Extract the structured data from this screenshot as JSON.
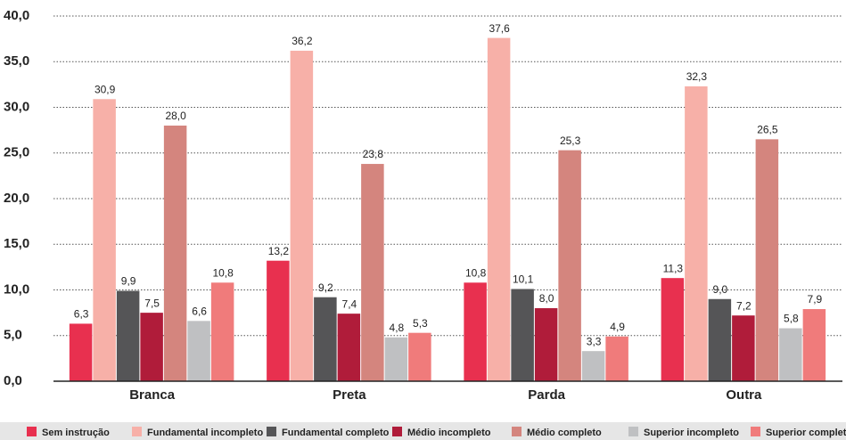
{
  "chart_data": {
    "type": "bar",
    "categories": [
      "Branca",
      "Preta",
      "Parda",
      "Outra"
    ],
    "series": [
      {
        "name": "Sem instrução",
        "color": "#e8304f",
        "values": [
          6.3,
          13.2,
          10.8,
          11.3
        ],
        "value_labels": [
          "6,3",
          "13,2",
          "10,8",
          "11,3"
        ]
      },
      {
        "name": "Fundamental incompleto",
        "color": "#f7b0a8",
        "values": [
          30.9,
          36.2,
          37.6,
          32.3
        ],
        "value_labels": [
          "30,9",
          "36,2",
          "37,6",
          "32,3"
        ]
      },
      {
        "name": "Fundamental completo",
        "color": "#555557",
        "values": [
          9.9,
          9.2,
          10.1,
          9.0
        ],
        "value_labels": [
          "9,9",
          "9,2",
          "10,1",
          "9,0"
        ]
      },
      {
        "name": "Médio incompleto",
        "color": "#b01c3a",
        "values": [
          7.5,
          7.4,
          8.0,
          7.2
        ],
        "value_labels": [
          "7,5",
          "7,4",
          "8,0",
          "7,2"
        ]
      },
      {
        "name": "Médio completo",
        "color": "#d4857e",
        "values": [
          28.0,
          23.8,
          25.3,
          26.5
        ],
        "value_labels": [
          "28,0",
          "23,8",
          "25,3",
          "26,5"
        ]
      },
      {
        "name": "Superior incompleto",
        "color": "#bfc0c2",
        "values": [
          6.6,
          4.8,
          3.3,
          5.8
        ],
        "value_labels": [
          "6,6",
          "4,8",
          "3,3",
          "5,8"
        ]
      },
      {
        "name": "Superior completo",
        "color": "#f07b7b",
        "values": [
          10.8,
          5.3,
          4.9,
          7.9
        ],
        "value_labels": [
          "10,8",
          "5,3",
          "4,9",
          "7,9"
        ]
      }
    ],
    "ylim": [
      0,
      40
    ],
    "yticks": [
      {
        "value": 0,
        "label": "0,0"
      },
      {
        "value": 5,
        "label": "5,0"
      },
      {
        "value": 10,
        "label": "10,0"
      },
      {
        "value": 15,
        "label": "15,0"
      },
      {
        "value": 20,
        "label": "20,0"
      },
      {
        "value": 25,
        "label": "25,0"
      },
      {
        "value": 30,
        "label": "30,0"
      },
      {
        "value": 35,
        "label": "35,0"
      },
      {
        "value": 40,
        "label": "40,0"
      }
    ],
    "grid": true,
    "legend": "bottom"
  }
}
